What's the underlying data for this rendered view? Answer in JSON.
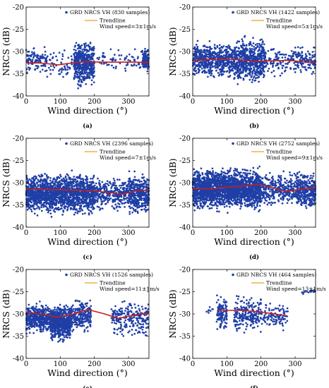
{
  "colors": {
    "points": "#1f3fa6",
    "trend": "#c81e1e",
    "trend_legend": "#f0a020"
  },
  "chart_data": [
    {
      "type": "scatter",
      "caption": "(a)",
      "series_label": "GRD NRCS VH (830 samples)",
      "trend_label": "Trendline",
      "note": "Wind speed=3±1m/s",
      "xlabel": "Wind direction (°)",
      "ylabel": "NRCS (dB)",
      "xlim": [
        0,
        360
      ],
      "ylim": [
        -40,
        -20
      ],
      "xticks": [
        0,
        100,
        200,
        300
      ],
      "yticks": [
        -40,
        -35,
        -30,
        -25,
        -20
      ],
      "sample_count": 830,
      "clusters": [
        {
          "x": [
            0,
            60
          ],
          "y": [
            -36,
            -28
          ],
          "n": 110
        },
        {
          "x": [
            60,
            140
          ],
          "y": [
            -37,
            -29
          ],
          "n": 60
        },
        {
          "x": [
            140,
            200
          ],
          "y": [
            -39,
            -26
          ],
          "n": 480
        },
        {
          "x": [
            200,
            340
          ],
          "y": [
            -35,
            -29
          ],
          "n": 70
        },
        {
          "x": [
            340,
            360
          ],
          "y": [
            -35,
            -29
          ],
          "n": 110
        }
      ],
      "trend": {
        "x": [
          0,
          45,
          95,
          140,
          175,
          220,
          270,
          320,
          360
        ],
        "y": [
          -32.5,
          -32.6,
          -33.0,
          -32.5,
          -32.3,
          -32.4,
          -32.4,
          -32.4,
          -32.5
        ]
      }
    },
    {
      "type": "scatter",
      "caption": "(b)",
      "series_label": "GRD NRCS VH (1422 samples)",
      "trend_label": "Trendline",
      "note": "Wind speed=5±1m/s",
      "xlabel": "Wind direction (°)",
      "ylabel": "NRCS (dB)",
      "xlim": [
        0,
        360
      ],
      "ylim": [
        -40,
        -20
      ],
      "xticks": [
        0,
        100,
        200,
        300
      ],
      "yticks": [
        -40,
        -35,
        -30,
        -25,
        -20
      ],
      "sample_count": 1422,
      "clusters": [
        {
          "x": [
            0,
            120
          ],
          "y": [
            -37,
            -27
          ],
          "n": 560
        },
        {
          "x": [
            120,
            210
          ],
          "y": [
            -38,
            -26
          ],
          "n": 620
        },
        {
          "x": [
            210,
            300
          ],
          "y": [
            -36,
            -28
          ],
          "n": 110
        },
        {
          "x": [
            300,
            360
          ],
          "y": [
            -36,
            -28
          ],
          "n": 132
        }
      ],
      "trend": {
        "x": [
          0,
          50,
          90,
          140,
          180,
          230,
          280,
          320,
          360
        ],
        "y": [
          -32.0,
          -31.8,
          -31.7,
          -31.9,
          -32.2,
          -32.1,
          -32.0,
          -32.3,
          -32.4
        ]
      }
    },
    {
      "type": "scatter",
      "caption": "(c)",
      "series_label": "GRD NRCS VH (2396 samples)",
      "trend_label": "Trendline",
      "note": "Wind speed=7±1m/s",
      "xlabel": "Wind direction (°)",
      "ylabel": "NRCS (dB)",
      "xlim": [
        0,
        360
      ],
      "ylim": [
        -40,
        -20
      ],
      "xticks": [
        0,
        100,
        200,
        300
      ],
      "yticks": [
        -40,
        -35,
        -30,
        -25,
        -20
      ],
      "sample_count": 2396,
      "clusters": [
        {
          "x": [
            0,
            200
          ],
          "y": [
            -38,
            -27
          ],
          "n": 1700
        },
        {
          "x": [
            200,
            300
          ],
          "y": [
            -37,
            -28
          ],
          "n": 300
        },
        {
          "x": [
            300,
            360
          ],
          "y": [
            -38,
            -27
          ],
          "n": 396
        }
      ],
      "trend": {
        "x": [
          0,
          50,
          100,
          150,
          200,
          250,
          280,
          320,
          360
        ],
        "y": [
          -31.4,
          -31.5,
          -31.6,
          -31.7,
          -31.8,
          -32.3,
          -32.6,
          -31.9,
          -31.6
        ]
      }
    },
    {
      "type": "scatter",
      "caption": "(d)",
      "series_label": "GRD NRCS VH (2752 samples)",
      "trend_label": "Trendline",
      "note": "Wind speed=9±1m/s",
      "xlabel": "Wind direction (°)",
      "ylabel": "NRCS (dB)",
      "xlim": [
        0,
        360
      ],
      "ylim": [
        -40,
        -20
      ],
      "xticks": [
        0,
        100,
        200,
        300
      ],
      "yticks": [
        -40,
        -35,
        -30,
        -25,
        -20
      ],
      "sample_count": 2752,
      "clusters": [
        {
          "x": [
            0,
            200
          ],
          "y": [
            -37,
            -26
          ],
          "n": 2100
        },
        {
          "x": [
            200,
            300
          ],
          "y": [
            -36,
            -27
          ],
          "n": 300
        },
        {
          "x": [
            300,
            360
          ],
          "y": [
            -37,
            -27
          ],
          "n": 352
        }
      ],
      "trend": {
        "x": [
          0,
          50,
          100,
          150,
          190,
          230,
          270,
          320,
          360
        ],
        "y": [
          -31.3,
          -31.4,
          -31.0,
          -30.7,
          -30.4,
          -31.0,
          -32.0,
          -31.4,
          -31.1
        ]
      }
    },
    {
      "type": "scatter",
      "caption": "(e)",
      "series_label": "GRD NRCS VH (1526 samples)",
      "trend_label": "Trendline",
      "note": "Wind speed=11±1m/s",
      "xlabel": "Wind direction (°)",
      "ylabel": "NRCS (dB)",
      "xlim": [
        0,
        360
      ],
      "ylim": [
        -40,
        -20
      ],
      "xticks": [
        0,
        100,
        200,
        300
      ],
      "yticks": [
        -40,
        -35,
        -30,
        -25,
        -20
      ],
      "sample_count": 1526,
      "clusters": [
        {
          "x": [
            0,
            70
          ],
          "y": [
            -35,
            -27
          ],
          "n": 420
        },
        {
          "x": [
            70,
            130
          ],
          "y": [
            -37,
            -27
          ],
          "n": 620
        },
        {
          "x": [
            130,
            190
          ],
          "y": [
            -35,
            -26
          ],
          "n": 250
        },
        {
          "x": [
            250,
            360
          ],
          "y": [
            -36,
            -26
          ],
          "n": 236
        }
      ],
      "trend": {
        "x": [
          0,
          40,
          90,
          130,
          180,
          230,
          270,
          320,
          360
        ],
        "y": [
          -29.6,
          -30.0,
          -30.7,
          -30.2,
          -29.0,
          -30.0,
          -31.0,
          -30.2,
          -29.8
        ]
      }
    },
    {
      "type": "scatter",
      "caption": "(f)",
      "series_label": "GRD NRCS VH (464 samples)",
      "trend_label": "Trendline",
      "note": "Wind speed=13±1m/s",
      "xlabel": "Wind direction (°)",
      "ylabel": "NRCS (dB)",
      "xlim": [
        0,
        360
      ],
      "ylim": [
        -40,
        -20
      ],
      "xticks": [
        0,
        100,
        200,
        300
      ],
      "yticks": [
        -40,
        -35,
        -30,
        -25,
        -20
      ],
      "sample_count": 464,
      "clusters": [
        {
          "x": [
            40,
            60
          ],
          "y": [
            -30,
            -28
          ],
          "n": 8
        },
        {
          "x": [
            70,
            100
          ],
          "y": [
            -35,
            -25
          ],
          "n": 110
        },
        {
          "x": [
            120,
            200
          ],
          "y": [
            -35,
            -25
          ],
          "n": 220
        },
        {
          "x": [
            200,
            280
          ],
          "y": [
            -34,
            -27
          ],
          "n": 110
        },
        {
          "x": [
            320,
            360
          ],
          "y": [
            -26,
            -24
          ],
          "n": 16
        }
      ],
      "trend": {
        "x": [
          75,
          100,
          150,
          200,
          240,
          275
        ],
        "y": [
          -29.2,
          -29.2,
          -29.2,
          -29.6,
          -30.0,
          -30.4
        ]
      }
    }
  ]
}
